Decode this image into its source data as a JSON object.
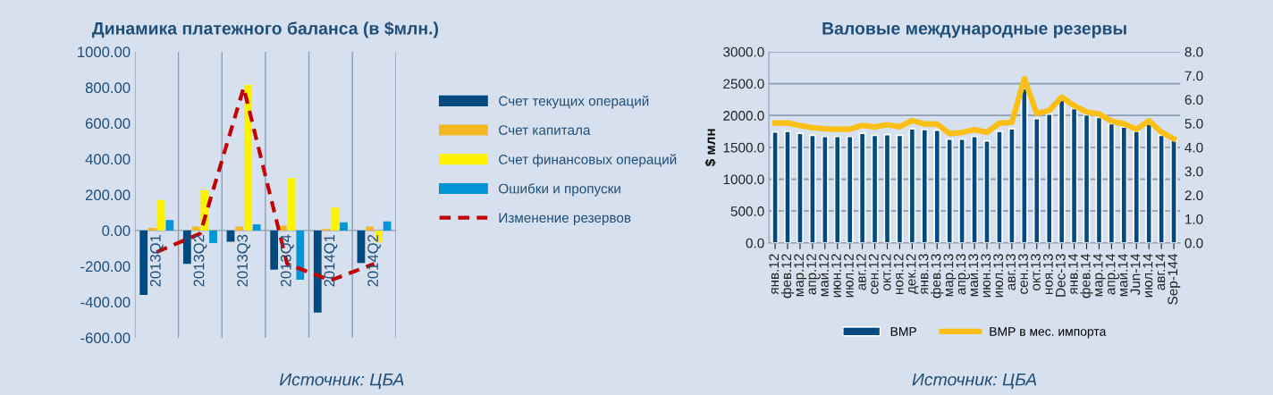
{
  "chart_data": [
    {
      "type": "bar",
      "title": "Динамика платежного баланса (в $млн.)",
      "categories": [
        "2013Q1",
        "2013Q2",
        "2013Q3",
        "2013Q4",
        "2014Q1",
        "2014Q2"
      ],
      "series": [
        {
          "name": "Счет текущих операций",
          "color": "#004a80",
          "values": [
            -361,
            -187,
            -63,
            -219,
            -459,
            -182
          ]
        },
        {
          "name": "Счет капитала",
          "color": "#f5b71f",
          "values": [
            15,
            22,
            22,
            27,
            8,
            22
          ]
        },
        {
          "name": "Счет финансовых операций",
          "color": "#fff200",
          "values": [
            171,
            225,
            814,
            293,
            128,
            -66
          ]
        },
        {
          "name": "Ошибки и пропуски",
          "color": "#0096d6",
          "values": [
            58,
            -70,
            35,
            -275,
            46,
            51
          ]
        },
        {
          "name": "Изменение резервов",
          "type": "line",
          "line_style": "dashed",
          "color": "#c00000",
          "values": [
            -121,
            -17,
            799,
            -187,
            -279,
            -187
          ]
        }
      ],
      "ylim": [
        -600,
        1000
      ],
      "yticks": [
        {
          "value": -600,
          "label": "-600.00"
        },
        {
          "value": -400,
          "label": "-400.00"
        },
        {
          "value": -200,
          "label": "-200.00"
        },
        {
          "value": 0,
          "label": "0.00"
        },
        {
          "value": 200,
          "label": "200.00"
        },
        {
          "value": 400,
          "label": "400.00"
        },
        {
          "value": 600,
          "label": "600.00"
        },
        {
          "value": 800,
          "label": "800.00"
        },
        {
          "value": 1000,
          "label": "1000.00"
        }
      ],
      "grid": "x",
      "legend": "right",
      "annotations": [
        "Источник: ЦБА"
      ]
    },
    {
      "type": "bar",
      "title": "Валовые международные резервы",
      "ylabel": "$ млн",
      "categories": [
        "янв.12",
        "фев.12",
        "мар.12",
        "апр.12",
        "май.12",
        "июн.12",
        "июл.12",
        "авг.12",
        "сен.12",
        "окт.12",
        "ноя.12",
        "дек.12",
        "янв.13",
        "фев.13",
        "мар.13",
        "апр.13",
        "май.13",
        "июн.13",
        "июл.13",
        "авг.13",
        "сен.13",
        "окт.13",
        "ноя.13",
        "Dec-13",
        "янв.14",
        "фев.14",
        "мар.14",
        "апр.14",
        "май.14",
        "Jun-14",
        "июл.14",
        "авг.14",
        "Sep-144"
      ],
      "series": [
        {
          "name": "ВМР",
          "color": "#004a80",
          "values": [
            1740,
            1750,
            1720,
            1690,
            1670,
            1670,
            1670,
            1720,
            1690,
            1700,
            1690,
            1790,
            1780,
            1770,
            1630,
            1630,
            1670,
            1600,
            1750,
            1790,
            2420,
            1950,
            2020,
            2240,
            2110,
            2010,
            1970,
            1870,
            1820,
            1750,
            1860,
            1690,
            1610
          ]
        },
        {
          "name": "ВМР в мес. импорта",
          "type": "line",
          "axis": "y2",
          "color": "#fbbf16",
          "values": [
            5.02,
            5.02,
            4.91,
            4.82,
            4.78,
            4.76,
            4.76,
            4.92,
            4.85,
            4.95,
            4.86,
            5.12,
            4.98,
            4.97,
            4.58,
            4.62,
            4.74,
            4.63,
            5.01,
            5.05,
            6.88,
            5.42,
            5.54,
            6.1,
            5.75,
            5.48,
            5.4,
            5.1,
            4.98,
            4.76,
            5.11,
            4.64,
            4.36
          ]
        }
      ],
      "ylim": [
        0,
        3000
      ],
      "yticks": [
        {
          "value": 0,
          "label": "0.0"
        },
        {
          "value": 500,
          "label": "500.0"
        },
        {
          "value": 1000,
          "label": "1000.0"
        },
        {
          "value": 1500,
          "label": "1500.0"
        },
        {
          "value": 2000,
          "label": "2000.0"
        },
        {
          "value": 2500,
          "label": "2500.0"
        },
        {
          "value": 3000,
          "label": "3000.0"
        }
      ],
      "y2lim": [
        0,
        8
      ],
      "y2ticks": [
        {
          "value": 0,
          "label": "0.0"
        },
        {
          "value": 1,
          "label": "1.0"
        },
        {
          "value": 2,
          "label": "2.0"
        },
        {
          "value": 3,
          "label": "3.0"
        },
        {
          "value": 4,
          "label": "4.0"
        },
        {
          "value": 5,
          "label": "5.0"
        },
        {
          "value": 6,
          "label": "6.0"
        },
        {
          "value": 7,
          "label": "7.0"
        },
        {
          "value": 8,
          "label": "8.0"
        }
      ],
      "grid": "y",
      "legend": "bottom",
      "annotations": [
        "Источник: ЦБА"
      ]
    }
  ]
}
